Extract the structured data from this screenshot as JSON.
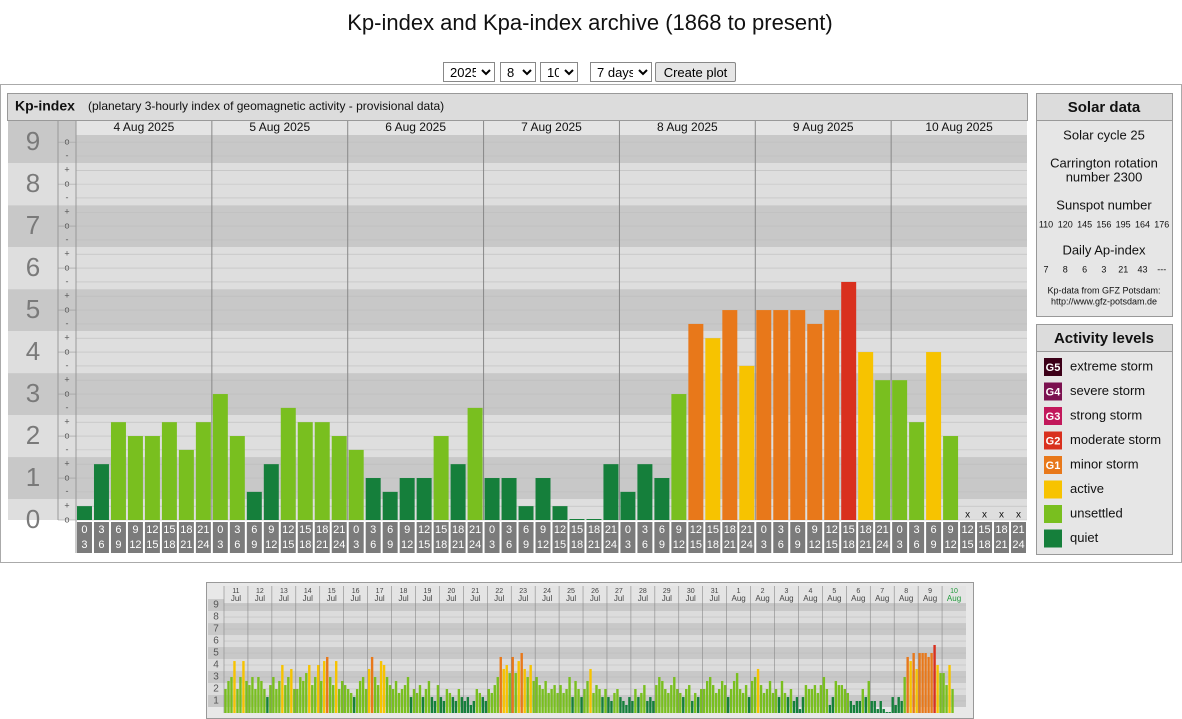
{
  "page": {
    "title": "Kp-index and Kpa-index archive (1868 to present)"
  },
  "controls": {
    "year": "2025",
    "month": "8",
    "day": "10",
    "range": "7 days",
    "button": "Create plot"
  },
  "chart_data": [
    {
      "type": "bar",
      "title": "Kp-index",
      "subtitle": "(planetary 3-hourly index of geomagnetic activity - provisional data)",
      "days": [
        "4 Aug 2025",
        "5 Aug 2025",
        "6 Aug 2025",
        "7 Aug 2025",
        "8 Aug 2025",
        "9 Aug 2025",
        "10 Aug 2025"
      ],
      "hours": [
        [
          "0",
          "3"
        ],
        [
          "3",
          "6"
        ],
        [
          "6",
          "9"
        ],
        [
          "9",
          "12"
        ],
        [
          "12",
          "15"
        ],
        [
          "15",
          "18"
        ],
        [
          "18",
          "21"
        ],
        [
          "21",
          "24"
        ]
      ],
      "values": [
        0.33,
        1.33,
        2.33,
        2,
        2,
        2.33,
        1.67,
        2.33,
        3,
        2,
        0.67,
        1.33,
        2.67,
        2.33,
        2.33,
        2,
        1.67,
        1,
        0.67,
        1,
        1,
        2,
        1.33,
        2.67,
        1,
        1,
        0.33,
        1,
        0.33,
        0,
        0,
        1.33,
        0.67,
        1.33,
        1,
        3,
        4.67,
        4.33,
        5,
        3.67,
        5,
        5,
        5,
        4.67,
        5,
        5.67,
        4,
        3.33,
        3.33,
        2.33,
        4,
        2,
        null,
        null,
        null,
        null
      ],
      "missing_label": "x",
      "ylim": [
        0,
        9.17
      ],
      "yticks": [
        0,
        1,
        2,
        3,
        4,
        5,
        6,
        7,
        8,
        9
      ],
      "minor_ticks": [
        {
          "value": 0,
          "label": "o"
        },
        {
          "value": 0.33,
          "label": "+"
        },
        {
          "value": 0.67,
          "label": "-"
        },
        {
          "value": 1,
          "label": "o"
        },
        {
          "value": 1.33,
          "label": "+"
        },
        {
          "value": 1.67,
          "label": "-"
        },
        {
          "value": 2,
          "label": "o"
        },
        {
          "value": 2.33,
          "label": "+"
        },
        {
          "value": 2.67,
          "label": "-"
        },
        {
          "value": 3,
          "label": "o"
        },
        {
          "value": 3.33,
          "label": "+"
        },
        {
          "value": 3.67,
          "label": "-"
        },
        {
          "value": 4,
          "label": "o"
        },
        {
          "value": 4.33,
          "label": "+"
        },
        {
          "value": 4.67,
          "label": "-"
        },
        {
          "value": 5,
          "label": "o"
        },
        {
          "value": 5.33,
          "label": "+"
        },
        {
          "value": 5.67,
          "label": "-"
        },
        {
          "value": 6,
          "label": "o"
        },
        {
          "value": 6.33,
          "label": "+"
        },
        {
          "value": 6.67,
          "label": "-"
        },
        {
          "value": 7,
          "label": "o"
        },
        {
          "value": 7.33,
          "label": "+"
        },
        {
          "value": 7.67,
          "label": "-"
        },
        {
          "value": 8,
          "label": "o"
        },
        {
          "value": 8.33,
          "label": "+"
        },
        {
          "value": 8.67,
          "label": "-"
        },
        {
          "value": 9,
          "label": "o"
        }
      ],
      "color_by_kp": [
        "#157f3b",
        "#157f3b",
        "#79bf1f",
        "#79bf1f",
        "#f7c300",
        "#e8781a",
        "#d9301e",
        "#c2185b",
        "#7b1150",
        "#3c0018"
      ],
      "grid": true
    },
    {
      "type": "bar",
      "days": [
        "11",
        "12",
        "13",
        "14",
        "15",
        "16",
        "17",
        "18",
        "19",
        "20",
        "21",
        "22",
        "23",
        "24",
        "25",
        "26",
        "27",
        "28",
        "29",
        "30",
        "31",
        "1",
        "2",
        "3",
        "4",
        "5",
        "6",
        "7",
        "8",
        "9",
        "10"
      ],
      "months": [
        "Jul",
        "Jul",
        "Jul",
        "Jul",
        "Jul",
        "Jul",
        "Jul",
        "Jul",
        "Jul",
        "Jul",
        "Jul",
        "Jul",
        "Jul",
        "Jul",
        "Jul",
        "Jul",
        "Jul",
        "Jul",
        "Jul",
        "Jul",
        "Jul",
        "Aug",
        "Aug",
        "Aug",
        "Aug",
        "Aug",
        "Aug",
        "Aug",
        "Aug",
        "Aug",
        "Aug"
      ],
      "values": [
        2,
        2.67,
        3,
        4.33,
        2,
        3,
        4.33,
        2.67,
        2.33,
        3,
        2,
        3,
        2.67,
        2,
        1.33,
        2.33,
        3,
        2,
        2.67,
        4,
        2.33,
        3,
        3.67,
        2,
        2,
        3,
        2.67,
        3.33,
        4,
        2.33,
        3,
        4,
        2.67,
        4.33,
        4.67,
        3,
        2.33,
        4.33,
        2,
        2.67,
        2.33,
        2,
        1.67,
        1.33,
        2,
        2.67,
        3,
        2,
        3.67,
        4.67,
        3,
        2.33,
        4.33,
        4,
        3,
        2.33,
        2,
        2.67,
        1.67,
        2,
        2.33,
        3,
        1.33,
        2,
        1.67,
        2.33,
        1.33,
        2,
        2.67,
        1.33,
        1,
        2.33,
        1.33,
        1,
        2,
        1.67,
        1.33,
        1,
        2,
        1.33,
        1,
        1.33,
        0.67,
        1,
        2,
        1.67,
        1.33,
        1,
        2,
        1.67,
        2.33,
        3,
        4.67,
        3.67,
        4,
        3.33,
        4.67,
        3.33,
        4.33,
        5,
        3.67,
        3,
        4,
        2.67,
        3,
        2.33,
        2,
        2.67,
        1.67,
        2,
        2.33,
        1.67,
        2.33,
        1.67,
        2,
        3,
        1.33,
        2.67,
        2,
        1.33,
        2,
        2.67,
        3.67,
        1.67,
        2.33,
        2,
        1.33,
        2,
        1.33,
        1,
        1.67,
        2,
        1.33,
        1,
        0.67,
        1.33,
        1,
        2,
        1.33,
        1.67,
        2.33,
        1,
        1.33,
        1,
        2.33,
        3,
        2.67,
        2,
        1.67,
        2.33,
        3,
        2,
        1.67,
        1.33,
        2,
        2.33,
        1,
        1.67,
        1.33,
        2,
        2,
        2.67,
        3,
        2.33,
        1.67,
        2,
        2.67,
        2.33,
        1.33,
        2,
        2.67,
        3.33,
        2,
        1.67,
        2.33,
        1.33,
        2.67,
        3,
        3.67,
        2.33,
        1.67,
        2,
        2.67,
        1.67,
        2,
        1.33,
        2.67,
        1.67,
        1.33,
        2,
        1,
        1.33,
        0.33,
        1.33,
        2.33,
        2,
        2,
        2.33,
        1.67,
        2.33,
        3,
        2,
        0.67,
        1.33,
        2.67,
        2.33,
        2.33,
        2,
        1.67,
        1,
        0.67,
        1,
        1,
        2,
        1.33,
        2.67,
        1,
        1,
        0.33,
        1,
        0.33,
        0,
        0,
        1.33,
        0.67,
        1.33,
        1,
        3,
        4.67,
        4.33,
        5,
        3.67,
        5,
        5,
        5,
        4.67,
        5,
        5.67,
        4,
        3.33,
        3.33,
        2.33,
        4,
        2,
        null,
        null,
        null,
        null
      ],
      "ylim": [
        0,
        9.67
      ],
      "yticks": [
        1,
        2,
        3,
        4,
        5,
        6,
        7,
        8,
        9
      ],
      "current_day_color": "#1f9a3a",
      "grid": true
    }
  ],
  "solar_data": {
    "title": "Solar data",
    "cycle": "Solar cycle 25",
    "carrington": [
      "Carrington rotation",
      "number 2300"
    ],
    "sunspot_title": "Sunspot number",
    "sunspot": [
      110,
      120,
      145,
      156,
      195,
      164,
      176
    ],
    "ap_title": "Daily Ap-index",
    "ap": [
      7,
      8,
      6,
      3,
      21,
      43,
      "---"
    ],
    "source": [
      "Kp-data from GFZ Potsdam:",
      "http://www.gfz-potsdam.de"
    ]
  },
  "activity_levels": {
    "title": "Activity levels",
    "items": [
      {
        "badge": "G5",
        "label": "extreme storm",
        "color": "#3c0018"
      },
      {
        "badge": "G4",
        "label": "severe storm",
        "color": "#7b1150"
      },
      {
        "badge": "G3",
        "label": "strong storm",
        "color": "#c2185b"
      },
      {
        "badge": "G2",
        "label": "moderate storm",
        "color": "#d9301e"
      },
      {
        "badge": "G1",
        "label": "minor storm",
        "color": "#e8781a"
      },
      {
        "label": "active",
        "color": "#f7c300"
      },
      {
        "label": "unsettled",
        "color": "#79bf1f"
      },
      {
        "label": "quiet",
        "color": "#157f3b"
      }
    ]
  }
}
